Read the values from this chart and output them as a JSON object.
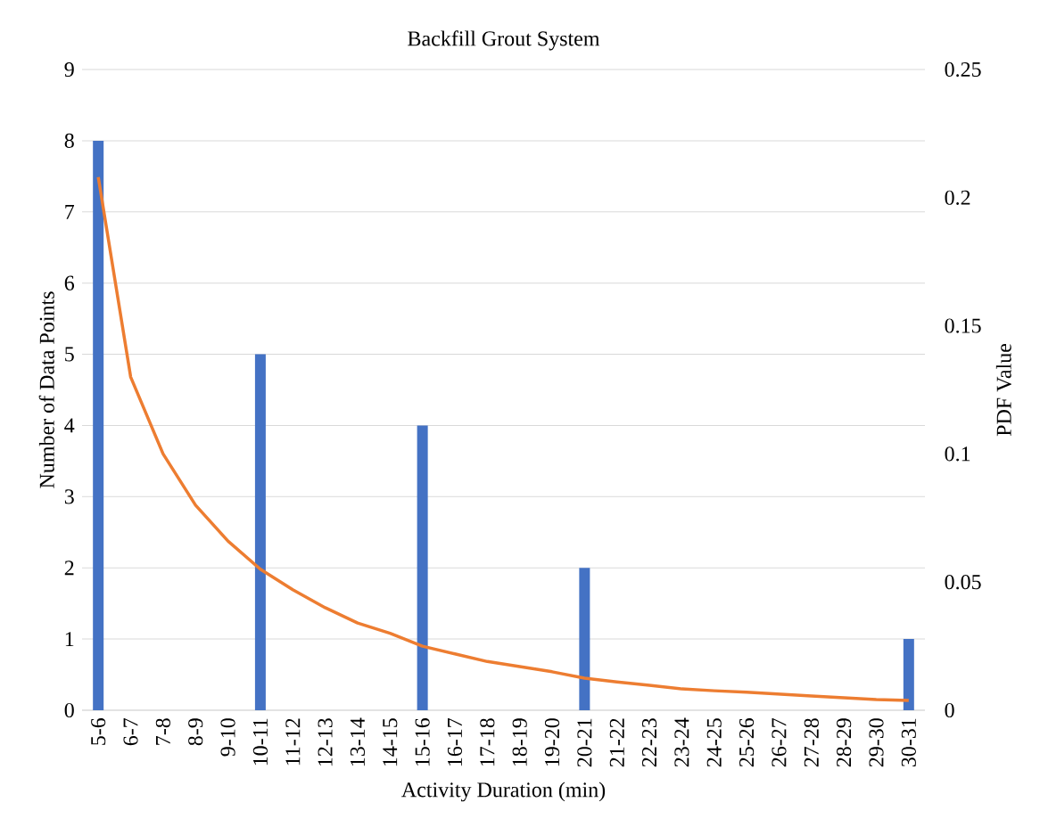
{
  "chart_data": {
    "type": "bar",
    "title": "Backfill Grout System",
    "xlabel": "Activity Duration (min)",
    "ylabel": "Number of Data Points",
    "y2label": "PDF Value",
    "categories": [
      "5-6",
      "6-7",
      "7-8",
      "8-9",
      "9-10",
      "10-11",
      "11-12",
      "12-13",
      "13-14",
      "14-15",
      "15-16",
      "16-17",
      "17-18",
      "18-19",
      "19-20",
      "20-21",
      "21-22",
      "22-23",
      "23-24",
      "24-25",
      "25-26",
      "26-27",
      "27-28",
      "28-29",
      "29-30",
      "30-31"
    ],
    "series": [
      {
        "color": "#4472c4",
        "values": [
          8,
          0,
          0,
          0,
          0,
          5,
          0,
          0,
          0,
          0,
          4,
          0,
          0,
          0,
          0,
          2,
          0,
          0,
          0,
          0,
          0,
          0,
          0,
          0,
          0,
          1
        ]
      },
      {
        "type": "line",
        "axis": "y2",
        "color": "#ed7d31",
        "values": [
          0.208,
          0.13,
          0.1,
          0.08,
          0.066,
          0.055,
          0.047,
          0.04,
          0.034,
          0.03,
          0.025,
          0.022,
          0.019,
          0.017,
          0.015,
          0.0125,
          0.011,
          0.0097,
          0.0083,
          0.0076,
          0.007,
          0.0063,
          0.0056,
          0.0049,
          0.0042,
          0.0038
        ]
      }
    ],
    "ylim": [
      0,
      9
    ],
    "yticks": [
      0,
      1,
      2,
      3,
      4,
      5,
      6,
      7,
      8,
      9
    ],
    "y2lim": [
      0,
      0.25
    ],
    "y2ticks": [
      0,
      0.05,
      0.1,
      0.15,
      0.2,
      0.25
    ],
    "grid": "y"
  }
}
